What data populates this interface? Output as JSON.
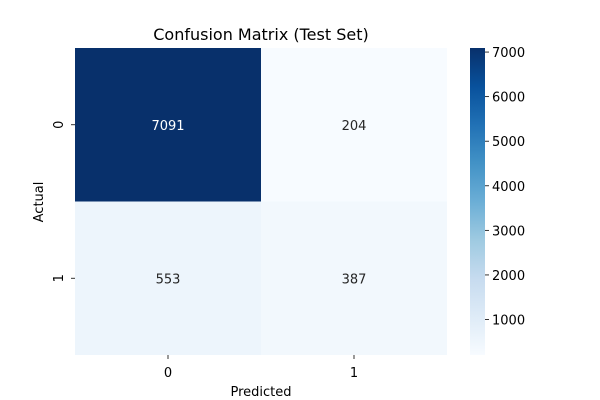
{
  "chart_data": {
    "type": "heatmap",
    "title": "Confusion Matrix (Test Set)",
    "xlabel": "Predicted",
    "ylabel": "Actual",
    "x_categories": [
      "0",
      "1"
    ],
    "y_categories": [
      "0",
      "1"
    ],
    "values": [
      [
        7091,
        204
      ],
      [
        553,
        387
      ]
    ],
    "colormap": "Blues",
    "color_low": "#f7fbff",
    "color_high": "#08306b",
    "colorbar": {
      "range": [
        204,
        7091
      ],
      "ticks": [
        1000,
        2000,
        3000,
        4000,
        5000,
        6000,
        7000
      ],
      "tick_labels": [
        "1000",
        "2000",
        "3000",
        "4000",
        "5000",
        "6000",
        "7000"
      ]
    }
  }
}
